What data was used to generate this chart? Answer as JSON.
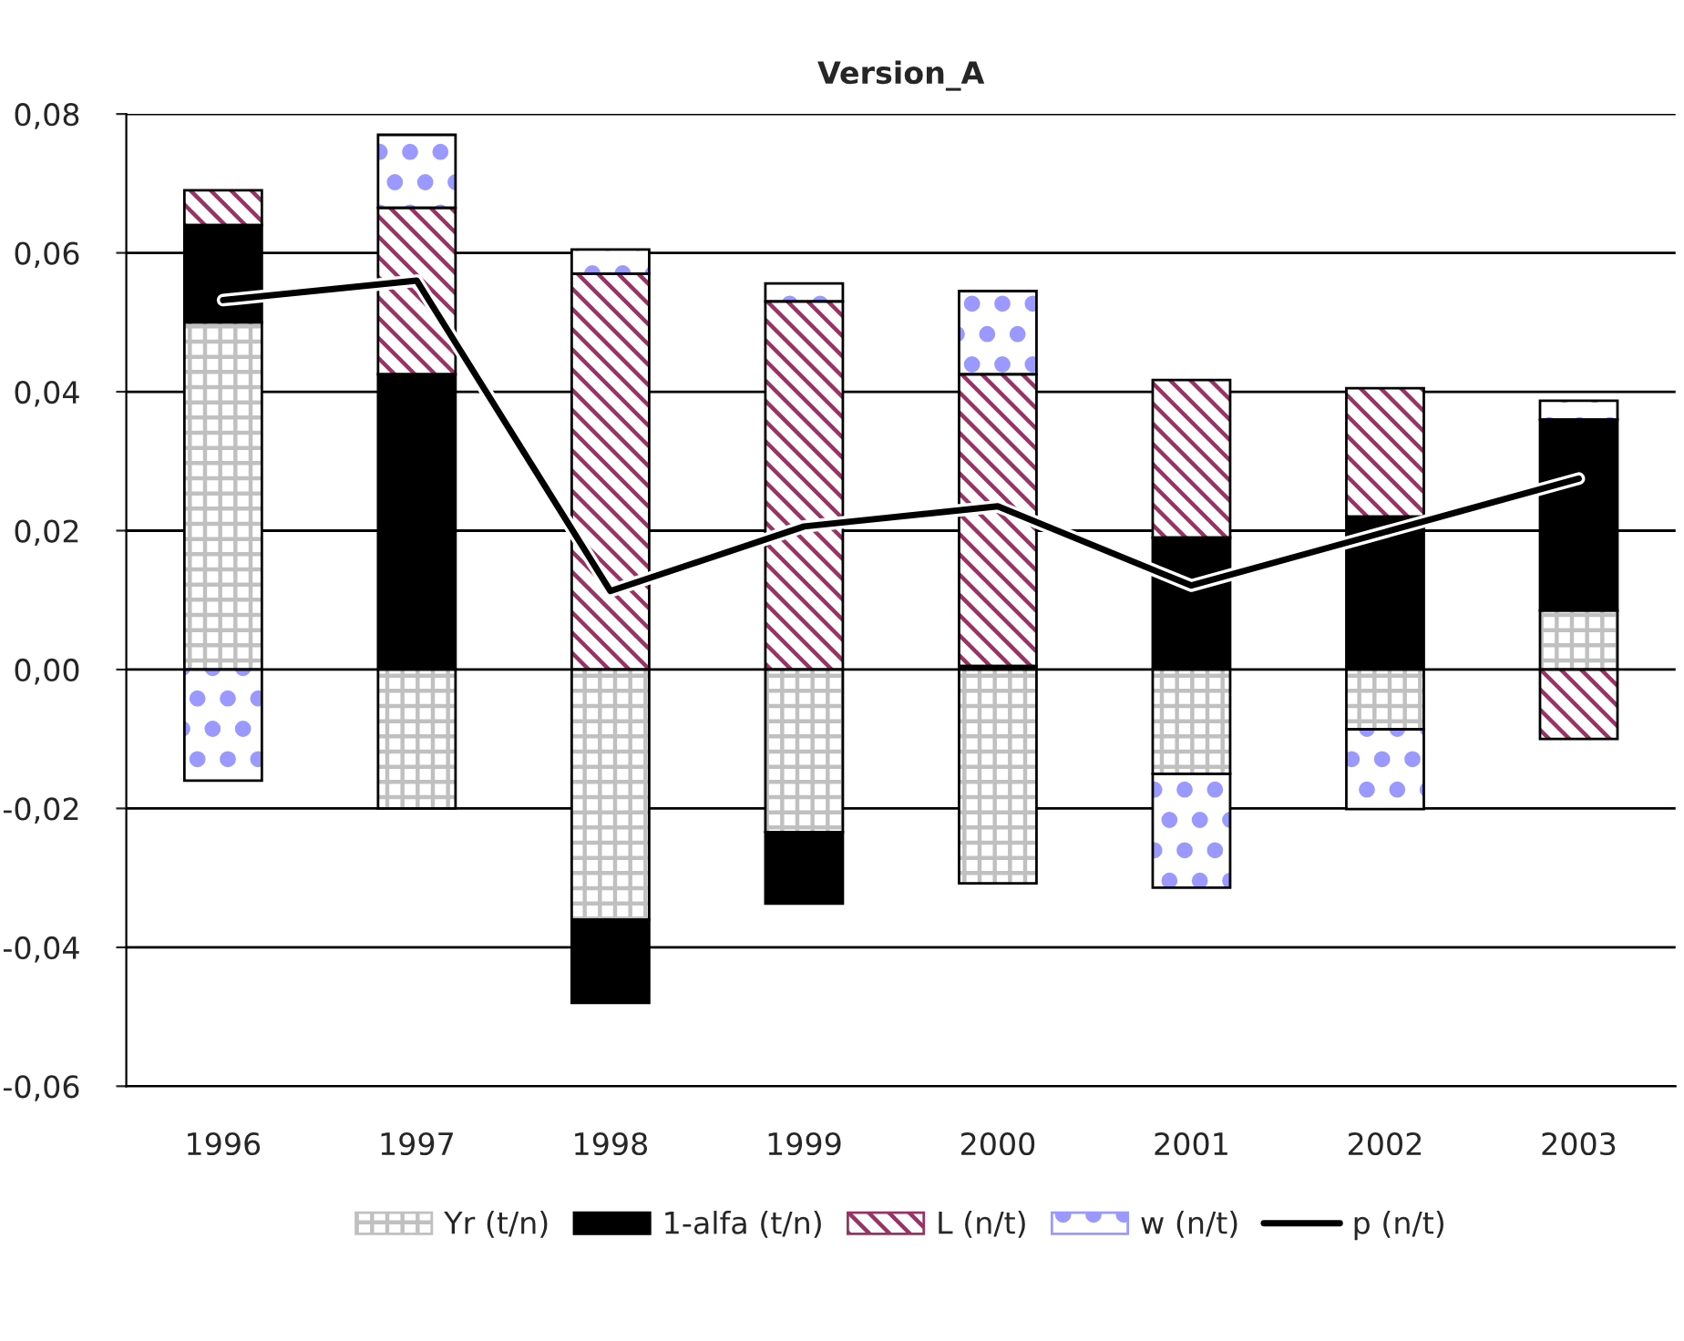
{
  "chart_data": {
    "type": "bar",
    "title": "Version_A",
    "stacked": true,
    "categories": [
      "1996",
      "1997",
      "1998",
      "1999",
      "2000",
      "2001",
      "2002",
      "2003"
    ],
    "series": [
      {
        "name": "Yr (t/n)",
        "color": "#c0c0c0",
        "values": [
          0.05,
          -0.02,
          -0.036,
          -0.0234,
          -0.0308,
          -0.015,
          -0.0086,
          0.0085
        ]
      },
      {
        "name": "1-alfa (t/n)",
        "color": "#000000",
        "values": [
          0.014,
          0.0425,
          -0.012,
          -0.0103,
          0.0005,
          0.019,
          0.022,
          0.0275
        ]
      },
      {
        "name": "L (n/t)",
        "color": "#993366",
        "values": [
          0.005,
          0.024,
          0.057,
          0.053,
          0.042,
          0.0227,
          0.0185,
          -0.01
        ]
      },
      {
        "name": "w (n/t)",
        "color": "#9999ff",
        "values": [
          -0.016,
          0.0105,
          0.0035,
          0.0026,
          0.012,
          -0.0164,
          -0.0115,
          0.0027
        ]
      },
      {
        "name": "p (n/t)",
        "type": "line",
        "color": "#000000",
        "values": [
          0.0532,
          0.056,
          0.0113,
          0.0206,
          0.0235,
          0.0121,
          0.0198,
          0.0275
        ]
      }
    ],
    "ylim": [
      -0.06,
      0.08
    ],
    "yticks": [
      {
        "value": -0.06,
        "label": "-0,06"
      },
      {
        "value": -0.04,
        "label": "-0,04"
      },
      {
        "value": -0.02,
        "label": "-0,02"
      },
      {
        "value": 0,
        "label": "0,00"
      },
      {
        "value": 0.02,
        "label": "0,02"
      },
      {
        "value": 0.04,
        "label": "0,04"
      },
      {
        "value": 0.06,
        "label": "0,06"
      },
      {
        "value": 0.08,
        "label": "0,08"
      }
    ],
    "grid": "y",
    "legend": "bottom",
    "marker": "none",
    "line_style": "solid"
  }
}
